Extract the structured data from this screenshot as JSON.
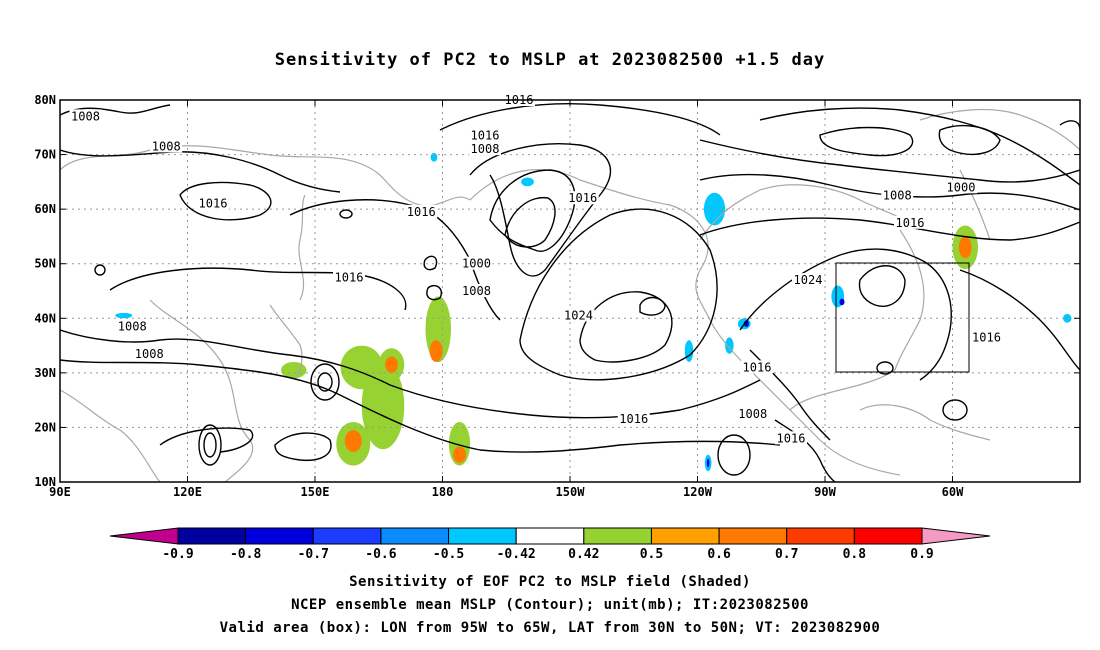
{
  "title": "Sensitivity of PC2 to MSLP at 2023082500 +1.5 day",
  "map": {
    "lon_range": [
      "90E",
      "30W"
    ],
    "lat_range": [
      "10N",
      "80N"
    ],
    "lat_ticks": [
      "80N",
      "70N",
      "60N",
      "50N",
      "40N",
      "30N",
      "20N",
      "10N"
    ],
    "lon_ticks": [
      "90E",
      "120E",
      "150E",
      "180",
      "150W",
      "120W",
      "90W",
      "60W"
    ],
    "grid": "dotted",
    "valid_box": {
      "lon_w": "95W",
      "lon_e": "65W",
      "lat_s": "30N",
      "lat_n": "50N"
    },
    "contour_labels": [
      {
        "text": "1008",
        "lon": 96,
        "lat": 77
      },
      {
        "text": "1008",
        "lon": 115,
        "lat": 71.5
      },
      {
        "text": "1016",
        "lon": 126,
        "lat": 61
      },
      {
        "text": "1016",
        "lon": 158,
        "lat": 47.5
      },
      {
        "text": "1008",
        "lon": 107,
        "lat": 38.5
      },
      {
        "text": "1008",
        "lon": 111,
        "lat": 33.5
      },
      {
        "text": "1016",
        "lon": 175,
        "lat": 59.5
      },
      {
        "text": "1016",
        "lon": 198,
        "lat": 80
      },
      {
        "text": "1016",
        "lon": 190,
        "lat": 73.5
      },
      {
        "text": "1008",
        "lon": 190,
        "lat": 71
      },
      {
        "text": "1000",
        "lon": 188,
        "lat": 50
      },
      {
        "text": "1008",
        "lon": 188,
        "lat": 45
      },
      {
        "text": "1016",
        "lon": 213,
        "lat": 62
      },
      {
        "text": "1024",
        "lon": 212,
        "lat": 40.5
      },
      {
        "text": "1016",
        "lon": 225,
        "lat": 21.5
      },
      {
        "text": "1016",
        "lon": 254,
        "lat": 31
      },
      {
        "text": "1008",
        "lon": 253,
        "lat": 22.5
      },
      {
        "text": "1016",
        "lon": 262,
        "lat": 18
      },
      {
        "text": "1024",
        "lon": 266,
        "lat": 47
      },
      {
        "text": "1016",
        "lon": 290,
        "lat": 57.5
      },
      {
        "text": "1008",
        "lon": 287,
        "lat": 62.5
      },
      {
        "text": "1000",
        "lon": 302,
        "lat": 64
      },
      {
        "text": "1016",
        "lon": 308,
        "lat": 36.5
      }
    ]
  },
  "colorbar": {
    "labels": [
      "-0.9",
      "-0.8",
      "-0.7",
      "-0.6",
      "-0.5",
      "-0.42",
      "0.42",
      "0.5",
      "0.6",
      "0.7",
      "0.8",
      "0.9"
    ],
    "colors": [
      "#c0008c",
      "#0000a0",
      "#0000dc",
      "#1c3cff",
      "#0a8cff",
      "#00c8ff",
      "#ffffff",
      "#96d232",
      "#ffa000",
      "#ff7800",
      "#ff3c00",
      "#ff0000",
      "#f59bc3"
    ]
  },
  "captions": {
    "line1": "Sensitivity of EOF PC2 to MSLP field (Shaded)",
    "line2": "NCEP ensemble mean MSLP (Contour); unit(mb); IT:2023082500",
    "line3": "Valid area (box): LON from 95W to 65W, LAT from 30N to 50N; VT: 2023082900"
  },
  "shading": [
    {
      "color": "#96d232",
      "lon": 161,
      "lat": 31,
      "rlon": 5,
      "rlat": 4
    },
    {
      "color": "#96d232",
      "lon": 166,
      "lat": 24,
      "rlon": 5,
      "rlat": 8
    },
    {
      "color": "#96d232",
      "lon": 159,
      "lat": 17,
      "rlon": 4,
      "rlat": 4
    },
    {
      "color": "#ff7800",
      "lon": 159,
      "lat": 17.5,
      "rlon": 2,
      "rlat": 2
    },
    {
      "color": "#96d232",
      "lon": 168,
      "lat": 31.5,
      "rlon": 3,
      "rlat": 3
    },
    {
      "color": "#ff7800",
      "lon": 168,
      "lat": 31.5,
      "rlon": 1.5,
      "rlat": 1.5
    },
    {
      "color": "#96d232",
      "lon": 179,
      "lat": 38,
      "rlon": 3,
      "rlat": 6
    },
    {
      "color": "#ff7800",
      "lon": 178.5,
      "lat": 34,
      "rlon": 1.5,
      "rlat": 2
    },
    {
      "color": "#96d232",
      "lon": 184,
      "lat": 17,
      "rlon": 2.5,
      "rlat": 4
    },
    {
      "color": "#ff7800",
      "lon": 184,
      "lat": 15,
      "rlon": 1.5,
      "rlat": 1.5
    },
    {
      "color": "#96d232",
      "lon": 145,
      "lat": 30.5,
      "rlon": 3,
      "rlat": 1.5
    },
    {
      "color": "#96d232",
      "lon": 303,
      "lat": 53,
      "rlon": 3,
      "rlat": 4
    },
    {
      "color": "#ff7800",
      "lon": 303,
      "lat": 53,
      "rlon": 1.5,
      "rlat": 2
    },
    {
      "color": "#00c8ff",
      "lon": 244,
      "lat": 60,
      "rlon": 2.5,
      "rlat": 3
    },
    {
      "color": "#00c8ff",
      "lon": 200,
      "lat": 65,
      "rlon": 1.5,
      "rlat": 0.8
    },
    {
      "color": "#00c8ff",
      "lon": 251,
      "lat": 39,
      "rlon": 1.5,
      "rlat": 1
    },
    {
      "color": "#0000dc",
      "lon": 251.5,
      "lat": 39,
      "rlon": 0.6,
      "rlat": 0.6
    },
    {
      "color": "#00c8ff",
      "lon": 238,
      "lat": 34,
      "rlon": 1,
      "rlat": 2
    },
    {
      "color": "#00c8ff",
      "lon": 247.5,
      "lat": 35,
      "rlon": 1,
      "rlat": 1.5
    },
    {
      "color": "#00c8ff",
      "lon": 273,
      "lat": 44,
      "rlon": 1.5,
      "rlat": 2
    },
    {
      "color": "#0000dc",
      "lon": 274,
      "lat": 43,
      "rlon": 0.6,
      "rlat": 0.6
    },
    {
      "color": "#00c8ff",
      "lon": 242.5,
      "lat": 13.5,
      "rlon": 0.8,
      "rlat": 1.5
    },
    {
      "color": "#0000dc",
      "lon": 242.5,
      "lat": 13.5,
      "rlon": 0.3,
      "rlat": 0.8
    },
    {
      "color": "#00c8ff",
      "lon": 105,
      "lat": 40.5,
      "rlon": 2,
      "rlat": 0.5
    },
    {
      "color": "#00c8ff",
      "lon": 327,
      "lat": 40,
      "rlon": 1,
      "rlat": 0.8
    },
    {
      "color": "#00c8ff",
      "lon": 178,
      "lat": 69.5,
      "rlon": 0.8,
      "rlat": 0.8
    }
  ]
}
